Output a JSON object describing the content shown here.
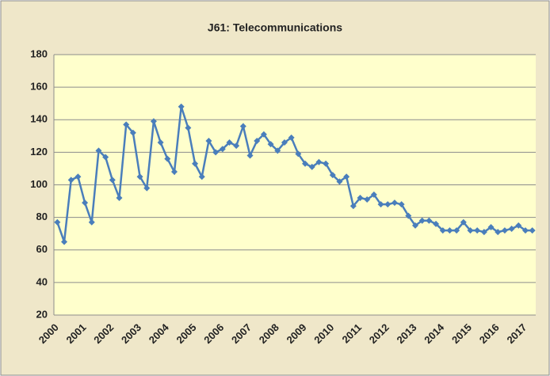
{
  "chart_data": {
    "type": "line",
    "title": "J61: Telecommunications",
    "categories": [
      "2000",
      null,
      null,
      null,
      "2001",
      null,
      null,
      null,
      "2002",
      null,
      null,
      null,
      "2003",
      null,
      null,
      null,
      "2004",
      null,
      null,
      null,
      "2005",
      null,
      null,
      null,
      "2006",
      null,
      null,
      null,
      "2007",
      null,
      null,
      null,
      "2008",
      null,
      null,
      null,
      "2009",
      null,
      null,
      null,
      "2010",
      null,
      null,
      null,
      "2011",
      null,
      null,
      null,
      "2012",
      null,
      null,
      null,
      "2013",
      null,
      null,
      null,
      "2014",
      null,
      null,
      null,
      "2015",
      null,
      null,
      null,
      "2016",
      null,
      null,
      null,
      "2017",
      null
    ],
    "series": [
      {
        "name": "J61",
        "color": "#4a7ebb",
        "values": [
          77,
          65,
          103,
          105,
          89,
          77,
          121,
          117,
          103,
          92,
          137,
          132,
          105,
          98,
          139,
          126,
          116,
          108,
          148,
          135,
          113,
          105,
          127,
          120,
          122,
          126,
          124,
          136,
          118,
          127,
          131,
          125,
          121,
          126,
          129,
          119,
          113,
          111,
          114,
          113,
          106,
          102,
          105,
          87,
          92,
          91,
          94,
          88,
          88,
          89,
          88,
          81,
          75,
          78,
          78,
          76,
          72,
          72,
          72,
          77,
          72,
          72,
          71,
          74,
          71,
          72,
          73,
          75,
          72,
          72
        ]
      }
    ],
    "ylim": [
      20,
      180
    ],
    "yticks": [
      20,
      40,
      60,
      80,
      100,
      120,
      140,
      160,
      180
    ],
    "grid": true
  }
}
